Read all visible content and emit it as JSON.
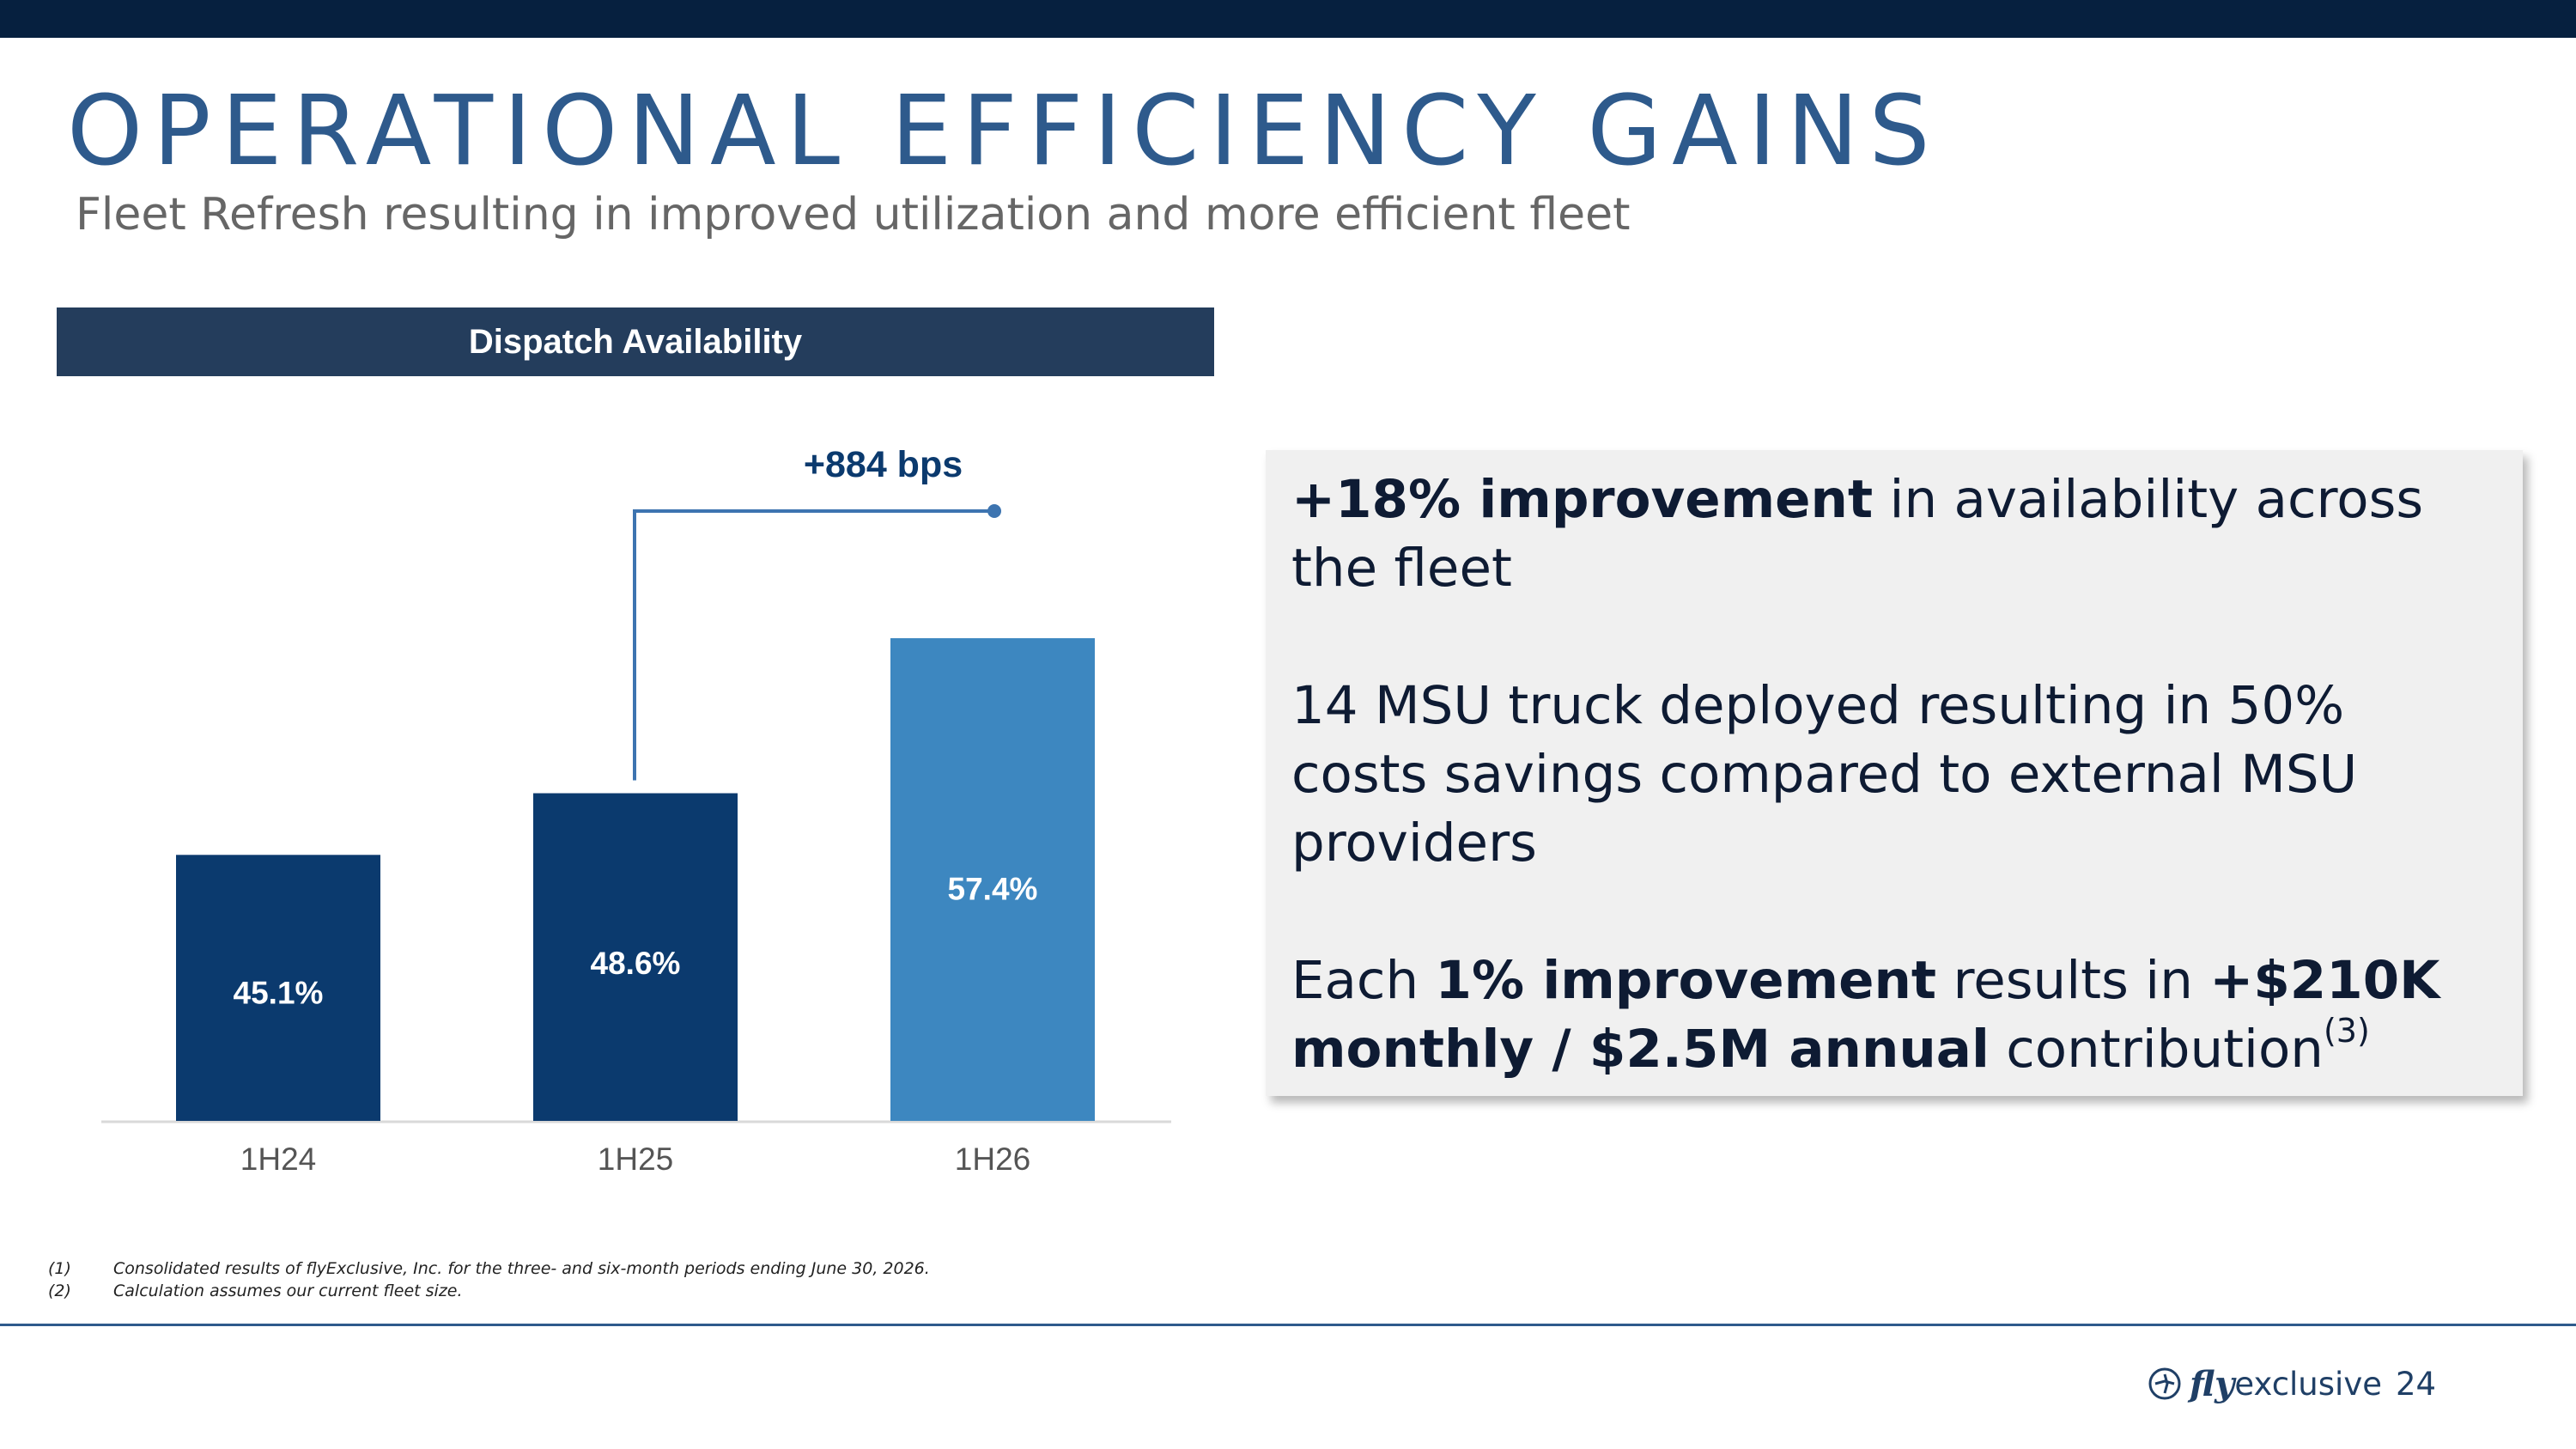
{
  "slide": {
    "title": "OPERATIONAL EFFICIENCY GAINS",
    "subtitle": "Fleet Refresh resulting in improved utilization and more efficient fleet",
    "chart_header": "Dispatch Availability",
    "page_number": "24"
  },
  "chart_data": {
    "type": "bar",
    "title": "Dispatch Availability",
    "categories": [
      "1H24",
      "1H25",
      "1H26"
    ],
    "values": [
      45.1,
      48.6,
      57.4
    ],
    "value_labels": [
      "45.1%",
      "48.6%",
      "57.4%"
    ],
    "bar_colors": [
      "#0b3a6e",
      "#0b3a6e",
      "#3d87c0"
    ],
    "ylim": [
      0,
      70
    ],
    "annotation": {
      "text": "+884 bps",
      "from_category": "1H25",
      "to_category": "1H26",
      "color": "#3d74b0"
    },
    "grid": false,
    "legend": "none"
  },
  "callout": {
    "p1_bold": "+18% improvement",
    "p1_rest": " in availability across the fleet",
    "p2": "14 MSU truck deployed resulting in 50% costs savings compared to external MSU providers",
    "p3_a": "Each ",
    "p3_bold1": "1% improvement",
    "p3_b": " results in ",
    "p3_bold2": "+$210K monthly / $2.5M annual",
    "p3_c": " contribution",
    "p3_sup": "(3)"
  },
  "footnotes": [
    {
      "num": "(1)",
      "text": "Consolidated results of flyExclusive, Inc. for the three- and six-month periods ending June 30, 2026."
    },
    {
      "num": "(2)",
      "text": "Calculation assumes our current fleet size."
    }
  ],
  "logo": {
    "fly": "fly",
    "exclusive": "exclusive"
  },
  "colors": {
    "top_bar": "#06203f",
    "title": "#2e5a8c",
    "header_bg": "#243d5c",
    "dark_bar": "#0b3a6e",
    "light_bar": "#3d87c0"
  }
}
